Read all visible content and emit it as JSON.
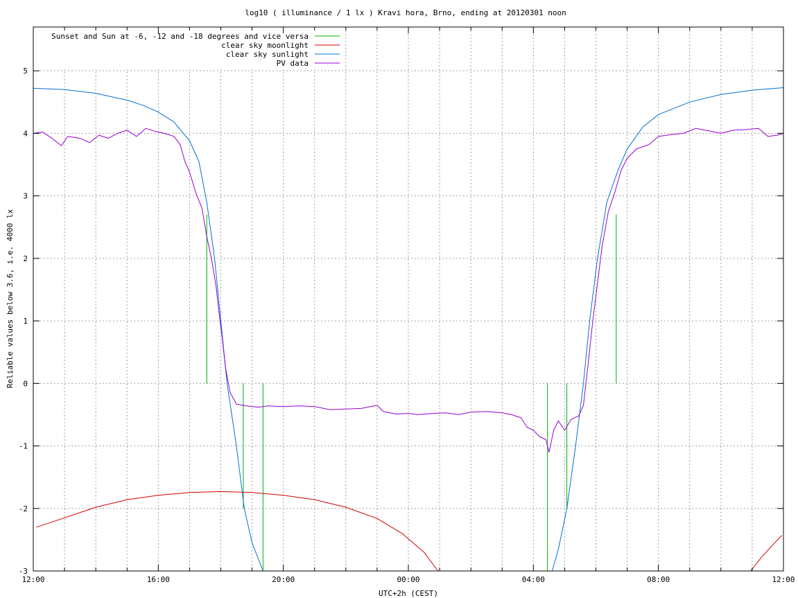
{
  "chart_data": {
    "type": "line",
    "title": "log10 ( illuminance / 1 lx ) Kravi hora, Brno, ending at 20120301 noon",
    "xlabel": "UTC+2h (CEST)",
    "ylabel": "Reliable values below 3.6, i.e. 4000 lx",
    "xlim": [
      12,
      36
    ],
    "ylim": [
      -3,
      5.7
    ],
    "x_ticks": [
      {
        "v": 12,
        "label": "12:00"
      },
      {
        "v": 16,
        "label": "16:00"
      },
      {
        "v": 20,
        "label": "20:00"
      },
      {
        "v": 24,
        "label": "00:00"
      },
      {
        "v": 28,
        "label": "04:00"
      },
      {
        "v": 32,
        "label": "08:00"
      },
      {
        "v": 36,
        "label": "12:00"
      }
    ],
    "x_minor_step_hours": 1,
    "y_ticks": [
      {
        "v": -3,
        "label": "-3"
      },
      {
        "v": -2,
        "label": "-2"
      },
      {
        "v": -1,
        "label": "-1"
      },
      {
        "v": 0,
        "label": "0"
      },
      {
        "v": 1,
        "label": "1"
      },
      {
        "v": 2,
        "label": "2"
      },
      {
        "v": 3,
        "label": "3"
      },
      {
        "v": 4,
        "label": "4"
      },
      {
        "v": 5,
        "label": "5"
      }
    ],
    "grid": true,
    "legend_position": "top-left",
    "series": [
      {
        "name": "Sunset and Sun at -6, -12 and -18 degrees and vice versa",
        "color": "#00b000",
        "style": "impulses",
        "points": [
          {
            "x": 17.55,
            "y": 2.7
          },
          {
            "x": 18.72,
            "y": -2.0
          },
          {
            "x": 19.35,
            "y": -3.0
          },
          {
            "x": 28.45,
            "y": -3.0
          },
          {
            "x": 29.07,
            "y": -2.0
          },
          {
            "x": 30.65,
            "y": 2.7
          }
        ]
      },
      {
        "name": "clear sky moonlight",
        "color": "#d00000",
        "style": "line",
        "points": [
          {
            "x": 12.1,
            "y": -2.3
          },
          {
            "x": 13,
            "y": -2.15
          },
          {
            "x": 14,
            "y": -1.98
          },
          {
            "x": 15,
            "y": -1.86
          },
          {
            "x": 16,
            "y": -1.79
          },
          {
            "x": 17,
            "y": -1.745
          },
          {
            "x": 18,
            "y": -1.73
          },
          {
            "x": 19,
            "y": -1.745
          },
          {
            "x": 20,
            "y": -1.79
          },
          {
            "x": 21,
            "y": -1.86
          },
          {
            "x": 22,
            "y": -1.98
          },
          {
            "x": 23,
            "y": -2.16
          },
          {
            "x": 23.8,
            "y": -2.4
          },
          {
            "x": 24.5,
            "y": -2.7
          },
          {
            "x": 24.95,
            "y": -3.0
          },
          {
            "x": 34.95,
            "y": -3.0
          },
          {
            "x": 35.3,
            "y": -2.78
          },
          {
            "x": 35.7,
            "y": -2.56
          },
          {
            "x": 35.95,
            "y": -2.43
          }
        ]
      },
      {
        "name": "clear sky sunlight",
        "color": "#0070d0",
        "style": "line",
        "points": [
          {
            "x": 12,
            "y": 4.72
          },
          {
            "x": 13,
            "y": 4.7
          },
          {
            "x": 14,
            "y": 4.64
          },
          {
            "x": 15,
            "y": 4.53
          },
          {
            "x": 15.5,
            "y": 4.45
          },
          {
            "x": 16,
            "y": 4.34
          },
          {
            "x": 16.5,
            "y": 4.18
          },
          {
            "x": 17,
            "y": 3.88
          },
          {
            "x": 17.3,
            "y": 3.55
          },
          {
            "x": 17.55,
            "y": 2.9
          },
          {
            "x": 17.8,
            "y": 2.0
          },
          {
            "x": 18.0,
            "y": 1.0
          },
          {
            "x": 18.2,
            "y": 0.0
          },
          {
            "x": 18.5,
            "y": -1.0
          },
          {
            "x": 18.75,
            "y": -2.0
          },
          {
            "x": 19.0,
            "y": -2.55
          },
          {
            "x": 19.35,
            "y": -3.0
          },
          {
            "x": 28.6,
            "y": -3.0
          },
          {
            "x": 28.8,
            "y": -2.65
          },
          {
            "x": 29.07,
            "y": -2.0
          },
          {
            "x": 29.35,
            "y": -1.0
          },
          {
            "x": 29.6,
            "y": 0.0
          },
          {
            "x": 29.8,
            "y": 1.0
          },
          {
            "x": 30.05,
            "y": 2.0
          },
          {
            "x": 30.35,
            "y": 2.9
          },
          {
            "x": 30.7,
            "y": 3.4
          },
          {
            "x": 31.0,
            "y": 3.75
          },
          {
            "x": 31.5,
            "y": 4.1
          },
          {
            "x": 32,
            "y": 4.3
          },
          {
            "x": 33,
            "y": 4.5
          },
          {
            "x": 34,
            "y": 4.62
          },
          {
            "x": 35,
            "y": 4.69
          },
          {
            "x": 36,
            "y": 4.73
          }
        ]
      },
      {
        "name": "PV data",
        "color": "#9400d3",
        "style": "line",
        "points": [
          {
            "x": 12.0,
            "y": 4.0
          },
          {
            "x": 12.3,
            "y": 4.02
          },
          {
            "x": 12.6,
            "y": 3.92
          },
          {
            "x": 12.9,
            "y": 3.8
          },
          {
            "x": 13.1,
            "y": 3.95
          },
          {
            "x": 13.5,
            "y": 3.92
          },
          {
            "x": 13.8,
            "y": 3.85
          },
          {
            "x": 14.1,
            "y": 3.97
          },
          {
            "x": 14.4,
            "y": 3.92
          },
          {
            "x": 14.7,
            "y": 4.0
          },
          {
            "x": 15.0,
            "y": 4.05
          },
          {
            "x": 15.3,
            "y": 3.95
          },
          {
            "x": 15.6,
            "y": 4.08
          },
          {
            "x": 15.9,
            "y": 4.03
          },
          {
            "x": 16.2,
            "y": 4.0
          },
          {
            "x": 16.5,
            "y": 3.95
          },
          {
            "x": 16.7,
            "y": 3.82
          },
          {
            "x": 16.85,
            "y": 3.55
          },
          {
            "x": 17.0,
            "y": 3.38
          },
          {
            "x": 17.2,
            "y": 3.05
          },
          {
            "x": 17.4,
            "y": 2.8
          },
          {
            "x": 17.55,
            "y": 2.35
          },
          {
            "x": 17.7,
            "y": 2.0
          },
          {
            "x": 17.85,
            "y": 1.55
          },
          {
            "x": 17.95,
            "y": 1.1
          },
          {
            "x": 18.05,
            "y": 0.7
          },
          {
            "x": 18.15,
            "y": 0.25
          },
          {
            "x": 18.3,
            "y": -0.15
          },
          {
            "x": 18.5,
            "y": -0.33
          },
          {
            "x": 18.8,
            "y": -0.36
          },
          {
            "x": 19.2,
            "y": -0.38
          },
          {
            "x": 19.5,
            "y": -0.36
          },
          {
            "x": 20.0,
            "y": -0.37
          },
          {
            "x": 20.5,
            "y": -0.36
          },
          {
            "x": 21.0,
            "y": -0.37
          },
          {
            "x": 21.5,
            "y": -0.42
          },
          {
            "x": 22.0,
            "y": -0.41
          },
          {
            "x": 22.5,
            "y": -0.4
          },
          {
            "x": 23.0,
            "y": -0.35
          },
          {
            "x": 23.2,
            "y": -0.45
          },
          {
            "x": 23.6,
            "y": -0.49
          },
          {
            "x": 24.0,
            "y": -0.48
          },
          {
            "x": 24.3,
            "y": -0.5
          },
          {
            "x": 24.8,
            "y": -0.48
          },
          {
            "x": 25.2,
            "y": -0.47
          },
          {
            "x": 25.6,
            "y": -0.5
          },
          {
            "x": 26.0,
            "y": -0.46
          },
          {
            "x": 26.5,
            "y": -0.45
          },
          {
            "x": 27.0,
            "y": -0.47
          },
          {
            "x": 27.3,
            "y": -0.5
          },
          {
            "x": 27.6,
            "y": -0.55
          },
          {
            "x": 27.8,
            "y": -0.7
          },
          {
            "x": 28.0,
            "y": -0.75
          },
          {
            "x": 28.2,
            "y": -0.85
          },
          {
            "x": 28.4,
            "y": -0.9
          },
          {
            "x": 28.5,
            "y": -1.1
          },
          {
            "x": 28.65,
            "y": -0.75
          },
          {
            "x": 28.8,
            "y": -0.6
          },
          {
            "x": 29.0,
            "y": -0.75
          },
          {
            "x": 29.2,
            "y": -0.58
          },
          {
            "x": 29.45,
            "y": -0.52
          },
          {
            "x": 29.6,
            "y": -0.35
          },
          {
            "x": 29.75,
            "y": 0.3
          },
          {
            "x": 29.9,
            "y": 1.0
          },
          {
            "x": 30.05,
            "y": 1.6
          },
          {
            "x": 30.2,
            "y": 2.2
          },
          {
            "x": 30.4,
            "y": 2.75
          },
          {
            "x": 30.6,
            "y": 3.05
          },
          {
            "x": 30.8,
            "y": 3.4
          },
          {
            "x": 31.0,
            "y": 3.6
          },
          {
            "x": 31.3,
            "y": 3.75
          },
          {
            "x": 31.7,
            "y": 3.82
          },
          {
            "x": 32.0,
            "y": 3.95
          },
          {
            "x": 32.4,
            "y": 3.98
          },
          {
            "x": 32.8,
            "y": 4.0
          },
          {
            "x": 33.2,
            "y": 4.08
          },
          {
            "x": 33.6,
            "y": 4.04
          },
          {
            "x": 34.0,
            "y": 4.0
          },
          {
            "x": 34.4,
            "y": 4.05
          },
          {
            "x": 34.8,
            "y": 4.06
          },
          {
            "x": 35.2,
            "y": 4.08
          },
          {
            "x": 35.5,
            "y": 3.95
          },
          {
            "x": 35.8,
            "y": 3.97
          },
          {
            "x": 36.0,
            "y": 4.0
          }
        ]
      }
    ]
  }
}
